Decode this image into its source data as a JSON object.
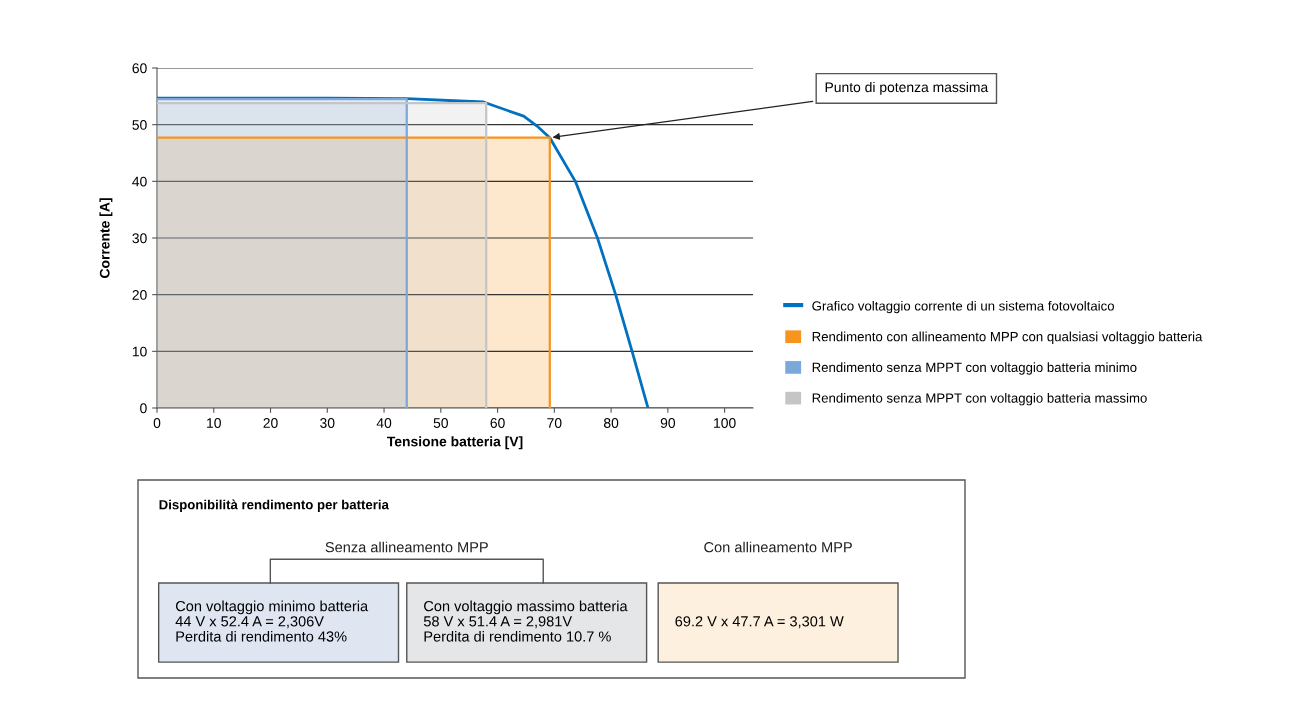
{
  "chart_data": [
    {
      "type": "line",
      "xlabel": "Tensione batteria [V]",
      "ylabel": "Corrente [A]",
      "xlim": [
        0,
        105
      ],
      "ylim": [
        0,
        60
      ],
      "xticks": [
        0,
        10,
        20,
        30,
        40,
        50,
        60,
        70,
        80,
        90,
        100
      ],
      "yticks": [
        0,
        10,
        20,
        30,
        40,
        50,
        60
      ],
      "grid": "y",
      "legend": "right",
      "marker": "none",
      "line_style": "solid",
      "annotations": [
        {
          "text": "Punto di potenza massima",
          "x": 69.2,
          "y": 47.7
        }
      ],
      "series": [
        {
          "name": "Grafico voltaggio corrente di un sistema fotovoltaico",
          "type": "line",
          "color": "#0070c0",
          "x": [
            0,
            30,
            44,
            57.5,
            64.6,
            66.9,
            69.2,
            73.7,
            77.6,
            80.8,
            83.7,
            86.5
          ],
          "values": [
            54.7,
            54.7,
            54.6,
            54.0,
            51.5,
            49.8,
            47.7,
            40,
            30,
            20,
            10,
            0
          ]
        },
        {
          "name": "Rendimento con allineamento MPP con qualsiasi voltaggio batteria",
          "type": "area",
          "color": "#f7941d",
          "x": [
            0,
            69.2
          ],
          "values": [
            47.7,
            47.7
          ]
        },
        {
          "name": "Rendimento senza MPPT con voltaggio batteria minimo",
          "type": "area",
          "color": "#7ba7d9",
          "x": [
            0,
            44
          ],
          "values": [
            54.5,
            54.5
          ]
        },
        {
          "name": "Rendimento senza MPPT con voltaggio batteria massimo",
          "type": "area",
          "color": "#c4c5c7",
          "x": [
            0,
            58
          ],
          "values": [
            53.8,
            53.8
          ]
        }
      ]
    },
    {
      "type": "other",
      "title": "Disponibilità rendimento per batteria",
      "annotations": [
        "Senza allineamento MPP",
        "Con allineamento MPP",
        "Con voltaggio minimo batteria\n44 V x 52.4 A = 2,306V\nPerdita di rendimento 43%",
        "Con voltaggio massimo batteria\n58 V x 51.4 A = 2,981V\nPerdita di rendimento 10.7 %",
        "69.2 V x 47.7 A = 3,301 W"
      ]
    }
  ]
}
